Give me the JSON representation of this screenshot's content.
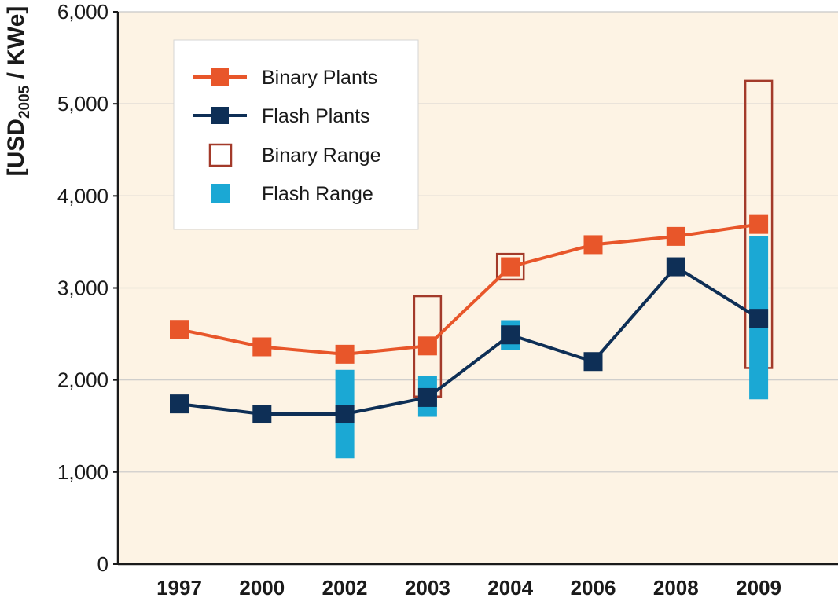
{
  "chart_data": {
    "type": "line",
    "categories": [
      "1997",
      "2000",
      "2002",
      "2003",
      "2004",
      "2006",
      "2008",
      "2009"
    ],
    "ylabel": {
      "prefix": "[USD",
      "subscript": "2005",
      "suffix": " / KWe]"
    },
    "ylim": [
      0,
      6000
    ],
    "yticks": [
      {
        "value": 0,
        "label": "0"
      },
      {
        "value": 1000,
        "label": "1,000"
      },
      {
        "value": 2000,
        "label": "2,000"
      },
      {
        "value": 3000,
        "label": "3,000"
      },
      {
        "value": 4000,
        "label": "4,000"
      },
      {
        "value": 5000,
        "label": "5,000"
      },
      {
        "value": 6000,
        "label": "6,000"
      }
    ],
    "grid": true,
    "legend_position": "top-left",
    "series": [
      {
        "name": "Binary Plants",
        "color": "#e8562a",
        "values": [
          2550,
          2360,
          2280,
          2370,
          3230,
          3470,
          3560,
          3690
        ]
      },
      {
        "name": "Flash Plants",
        "color": "#0e2f56",
        "values": [
          1740,
          1630,
          1630,
          1810,
          2490,
          2200,
          3230,
          2670
        ]
      }
    ],
    "ranges": [
      {
        "name": "Binary Range",
        "color": "#a33a2a",
        "style": "outline",
        "items": [
          {
            "category": "2003",
            "low": 1820,
            "high": 2910
          },
          {
            "category": "2004",
            "low": 3090,
            "high": 3370
          },
          {
            "category": "2009",
            "low": 2130,
            "high": 5250
          }
        ]
      },
      {
        "name": "Flash Range",
        "color": "#1ba8d4",
        "style": "filled",
        "items": [
          {
            "category": "2002",
            "low": 1150,
            "high": 2110
          },
          {
            "category": "2003",
            "low": 1600,
            "high": 2040
          },
          {
            "category": "2004",
            "low": 2330,
            "high": 2650
          },
          {
            "category": "2009",
            "low": 1790,
            "high": 3560
          }
        ]
      }
    ],
    "colors": {
      "plot_background": "#fdf3e4",
      "grid": "#c8c8c8",
      "axis": "#1a1a1a"
    }
  }
}
